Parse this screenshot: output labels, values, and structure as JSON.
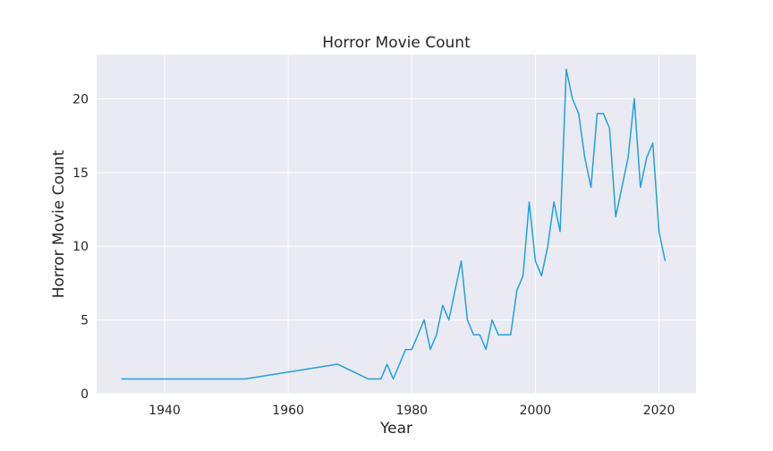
{
  "chart_data": {
    "type": "line",
    "title": "Horror Movie Count",
    "xlabel": "Year",
    "ylabel": "Horror Movie Count",
    "xlim": [
      1929,
      2026
    ],
    "ylim": [
      0,
      23
    ],
    "xticks": [
      1940,
      1960,
      1980,
      2000,
      2020
    ],
    "yticks": [
      0,
      5,
      10,
      15,
      20
    ],
    "grid": true,
    "colors": {
      "line": "#1fa2e0",
      "plot_background": "#eaeaf2",
      "grid": "#ffffff"
    },
    "series": [
      {
        "x": [
          1933,
          1953,
          1968,
          1973,
          1975,
          1976,
          1977,
          1979,
          1980,
          1982,
          1983,
          1984,
          1985,
          1986,
          1988,
          1989,
          1990,
          1991,
          1992,
          1993,
          1994,
          1995,
          1996,
          1997,
          1998,
          1999,
          2000,
          2001,
          2002,
          2003,
          2004,
          2005,
          2006,
          2007,
          2008,
          2009,
          2010,
          2011,
          2012,
          2013,
          2015,
          2016,
          2017,
          2018,
          2019,
          2020,
          2021
        ],
        "y": [
          1,
          1,
          2,
          1,
          1,
          2,
          1,
          3,
          3,
          5,
          3,
          4,
          6,
          5,
          9,
          5,
          4,
          4,
          3,
          5,
          4,
          4,
          4,
          7,
          8,
          13,
          9,
          8,
          10,
          13,
          11,
          22,
          20,
          19,
          16,
          14,
          19,
          19,
          18,
          12,
          16,
          20,
          14,
          16,
          17,
          11,
          9
        ]
      }
    ]
  }
}
